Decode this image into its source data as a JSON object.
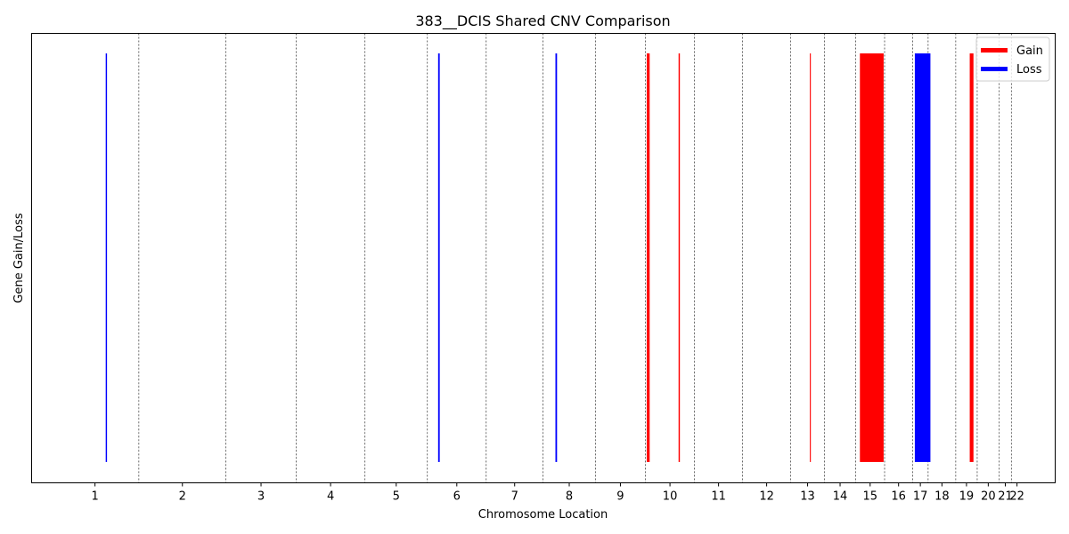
{
  "chart_data": {
    "type": "bar",
    "title": "383__DCIS Shared CNV Comparison",
    "xlabel": "Chromosome Location",
    "ylabel": "Gene Gain/Loss",
    "legend": {
      "placement": "top-right",
      "entries": [
        {
          "label": "Gain",
          "color": "#ff0000"
        },
        {
          "label": "Loss",
          "color": "#0000ff"
        }
      ]
    },
    "grid": false,
    "x_range": [
      -0.06,
      3.09
    ],
    "y_range": [
      0,
      1
    ],
    "chromosomes": [
      {
        "label": "1",
        "start": 0.0,
        "end": 0.27
      },
      {
        "label": "2",
        "start": 0.27,
        "end": 0.538
      },
      {
        "label": "3",
        "start": 0.538,
        "end": 0.754
      },
      {
        "label": "4",
        "start": 0.754,
        "end": 0.966
      },
      {
        "label": "5",
        "start": 0.966,
        "end": 1.158
      },
      {
        "label": "6",
        "start": 1.158,
        "end": 1.339
      },
      {
        "label": "7",
        "start": 1.339,
        "end": 1.514
      },
      {
        "label": "8",
        "start": 1.514,
        "end": 1.675
      },
      {
        "label": "9",
        "start": 1.675,
        "end": 1.829
      },
      {
        "label": "10",
        "start": 1.829,
        "end": 1.98
      },
      {
        "label": "11",
        "start": 1.98,
        "end": 2.128
      },
      {
        "label": "12",
        "start": 2.128,
        "end": 2.276
      },
      {
        "label": "13",
        "start": 2.276,
        "end": 2.38
      },
      {
        "label": "14",
        "start": 2.38,
        "end": 2.476
      },
      {
        "label": "15",
        "start": 2.476,
        "end": 2.565
      },
      {
        "label": "16",
        "start": 2.565,
        "end": 2.651
      },
      {
        "label": "17",
        "start": 2.651,
        "end": 2.699
      },
      {
        "label": "18",
        "start": 2.699,
        "end": 2.784
      },
      {
        "label": "19",
        "start": 2.784,
        "end": 2.85
      },
      {
        "label": "20",
        "start": 2.85,
        "end": 2.918
      },
      {
        "label": "21",
        "start": 2.918,
        "end": 2.955
      },
      {
        "label": "22",
        "start": 2.955,
        "end": 2.99
      }
    ],
    "series": [
      {
        "name": "Gain",
        "color": "#ff0000",
        "segments": [
          {
            "start": 1.833,
            "end": 1.842
          },
          {
            "start": 1.931,
            "end": 1.935
          },
          {
            "start": 2.335,
            "end": 2.338
          },
          {
            "start": 2.489,
            "end": 2.562
          },
          {
            "start": 2.827,
            "end": 2.8385
          }
        ]
      },
      {
        "name": "Loss",
        "color": "#0000ff",
        "segments": [
          {
            "start": 0.168,
            "end": 0.172
          },
          {
            "start": 1.191,
            "end": 1.196
          },
          {
            "start": 1.552,
            "end": 1.557
          },
          {
            "start": 2.658,
            "end": 2.706
          }
        ]
      }
    ]
  }
}
